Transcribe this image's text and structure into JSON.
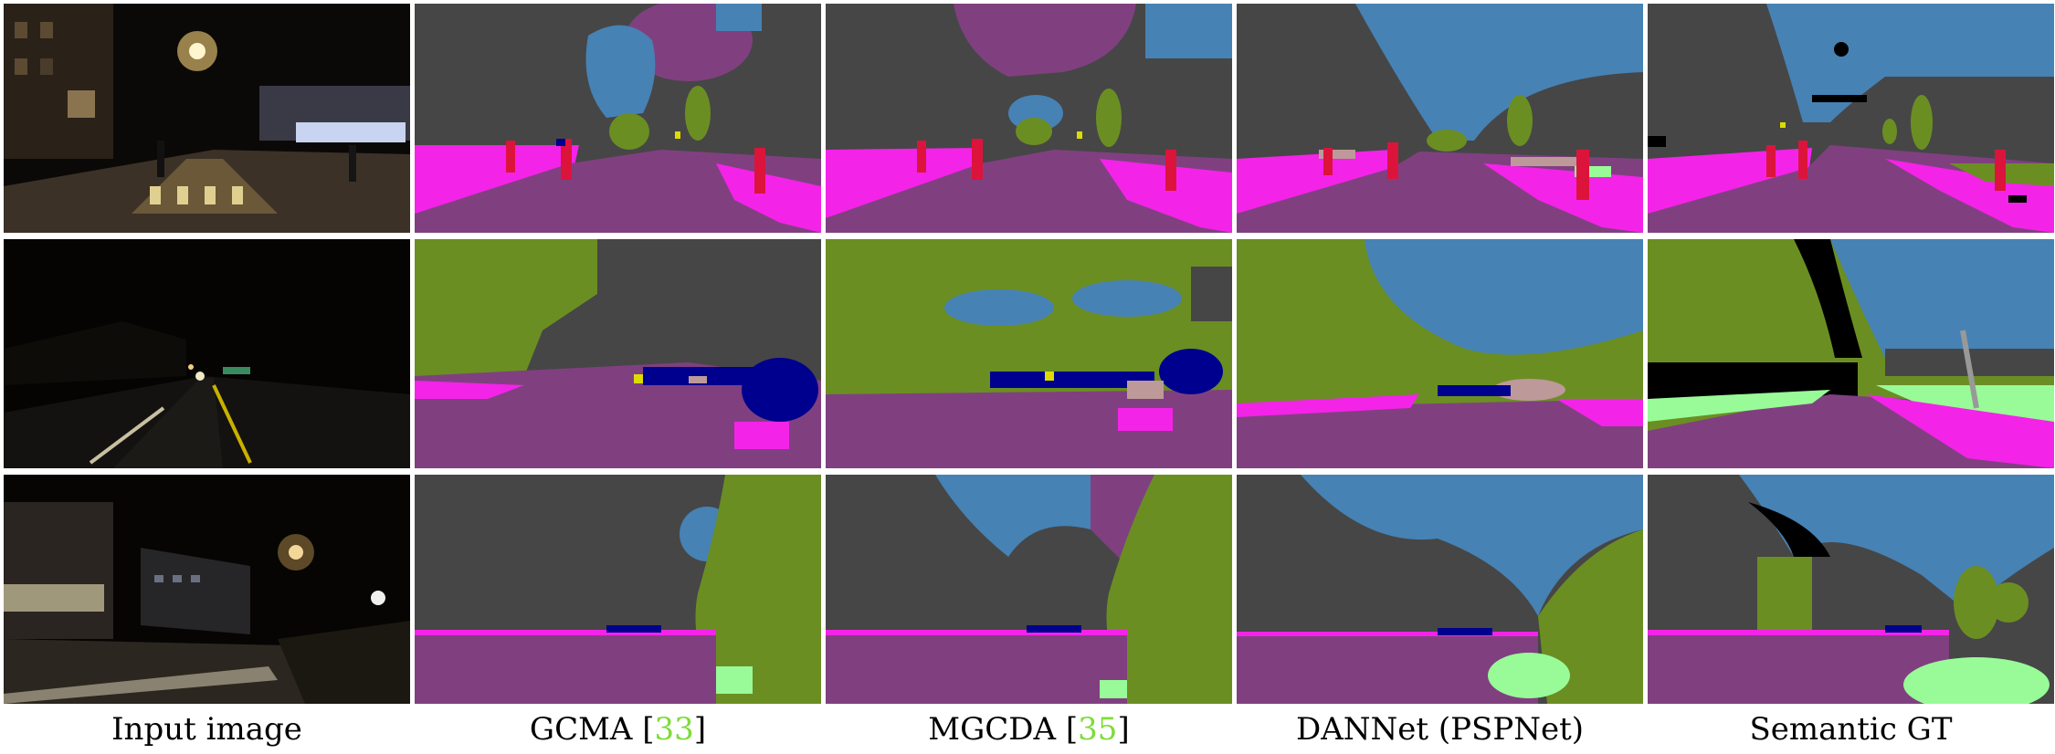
{
  "figure": {
    "columns": [
      {
        "label": "Input image",
        "ref": null
      },
      {
        "label": "GCMA",
        "ref": "33"
      },
      {
        "label": "MGCDA",
        "ref": "35"
      },
      {
        "label": "DANNet (PSPNet)",
        "ref": null
      },
      {
        "label": "Semantic GT",
        "ref": null
      }
    ],
    "rows": 3,
    "colors": {
      "road": "#804080",
      "sidewalk": "#f423e8",
      "building": "#464646",
      "vegetation": "#6b8e23",
      "terrain": "#98fb98",
      "sky": "#4682b4",
      "person": "#dc143c",
      "car": "#00008e",
      "wall": "#be9999",
      "void": "#000000",
      "traffic_sign": "#dcdc00",
      "night": "#0a0907"
    }
  }
}
